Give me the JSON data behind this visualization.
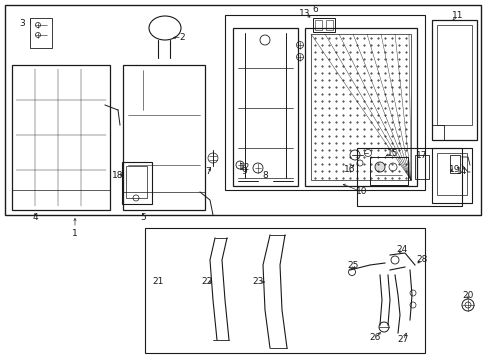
{
  "bg": "#ffffff",
  "lc": "#1a1a1a",
  "fs": 6.5,
  "fig_w": 4.89,
  "fig_h": 3.6,
  "dpi": 100
}
